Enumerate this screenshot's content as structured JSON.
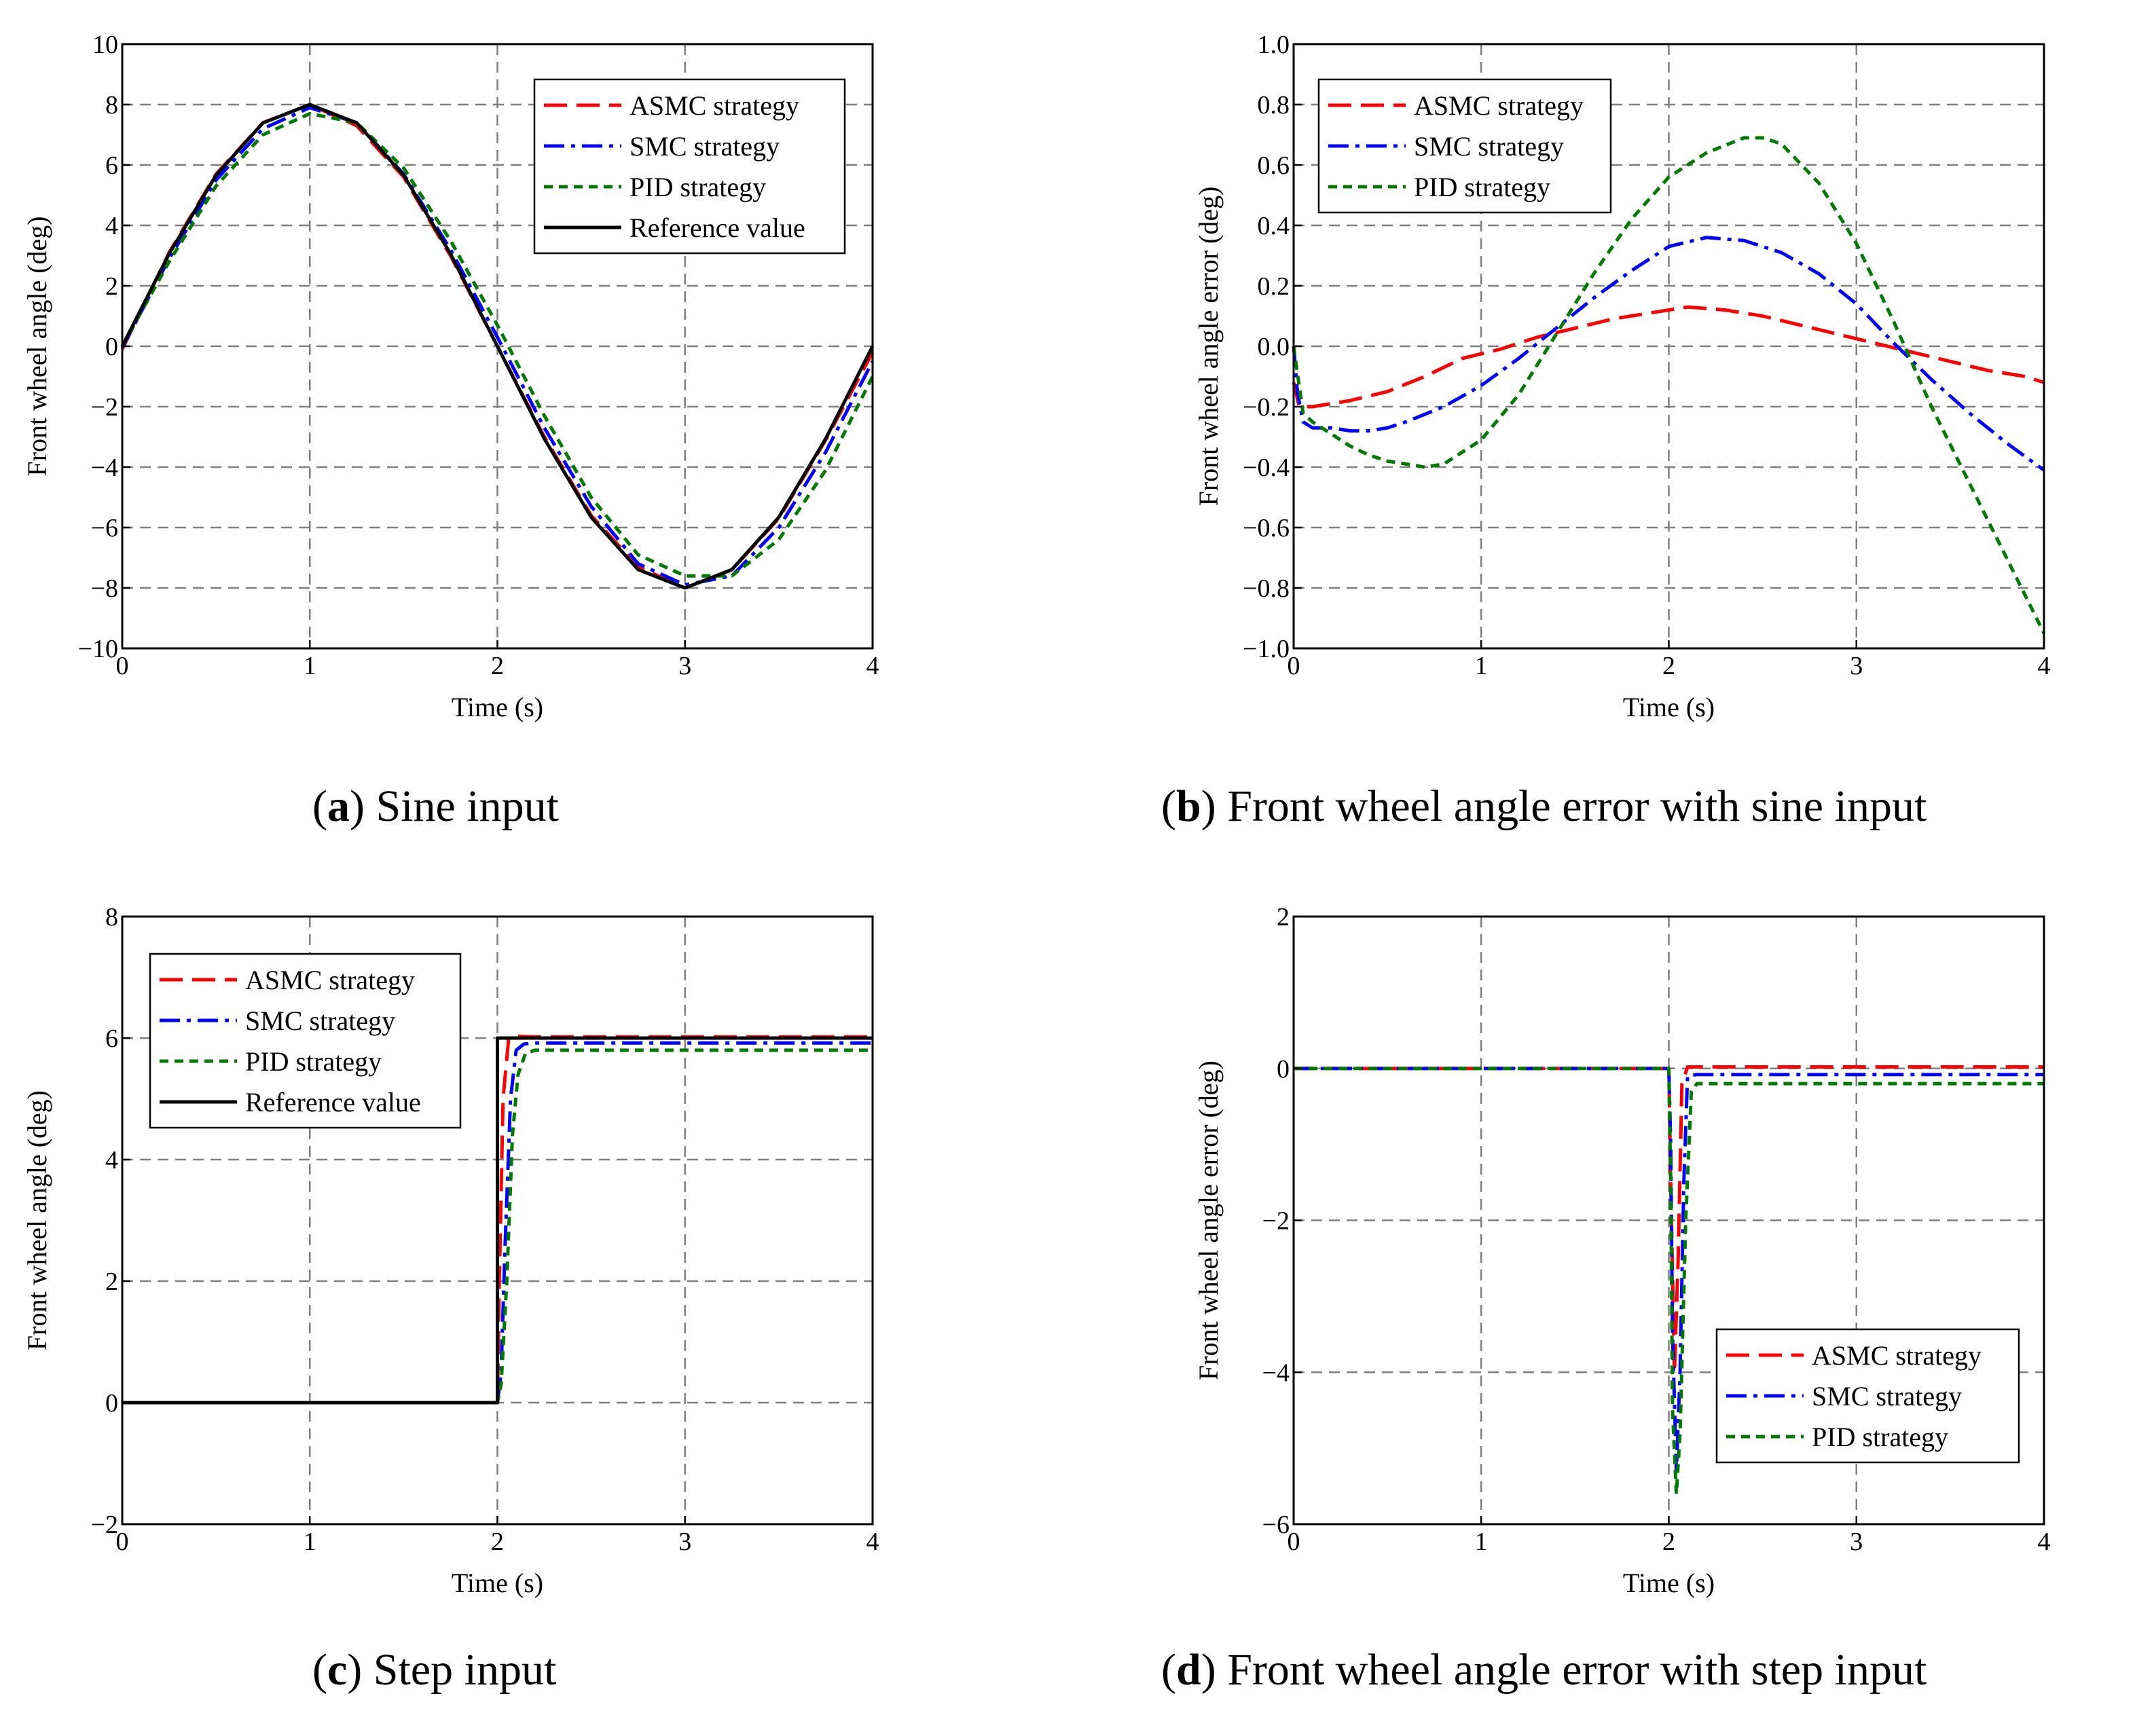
{
  "colors": {
    "asmc": "#ff0000",
    "smc": "#0000ff",
    "pid": "#007a00",
    "ref": "#000000",
    "grid": "#7f7f7f"
  },
  "chart_data": [
    {
      "id": "a",
      "type": "line",
      "caption_letter": "a",
      "caption_text": " Sine input",
      "xlabel": "Time (s)",
      "ylabel": "Front wheel angle (deg)",
      "xlim": [
        0,
        4
      ],
      "ylim": [
        -10,
        10
      ],
      "xticks": [
        0,
        1,
        2,
        3,
        4
      ],
      "xtick_labels": [
        "0",
        "1",
        "2",
        "3",
        "4"
      ],
      "yticks": [
        -10,
        -8,
        -6,
        -4,
        -2,
        0,
        2,
        4,
        6,
        8,
        10
      ],
      "ytick_labels": [
        "−10",
        "−8",
        "−6",
        "−4",
        "−2",
        "0",
        "2",
        "4",
        "6",
        "8",
        "10"
      ],
      "grid": true,
      "legend_position": "top-right",
      "series": [
        {
          "name": "ASMC strategy",
          "style": "asmc",
          "x": [
            0,
            0.25,
            0.5,
            0.75,
            1.0,
            1.25,
            1.5,
            1.75,
            2.0,
            2.25,
            2.5,
            2.75,
            3.0,
            3.25,
            3.5,
            3.75,
            4.0
          ],
          "y": [
            -0.1,
            3.1,
            5.7,
            7.4,
            8.0,
            7.3,
            5.6,
            3.0,
            0.0,
            -3.0,
            -5.6,
            -7.3,
            -8.0,
            -7.4,
            -5.7,
            -3.1,
            -0.2
          ]
        },
        {
          "name": "SMC strategy",
          "style": "smc",
          "x": [
            0,
            0.25,
            0.5,
            0.75,
            1.0,
            1.25,
            1.5,
            1.75,
            2.0,
            2.25,
            2.5,
            2.75,
            3.0,
            3.25,
            3.5,
            3.75,
            4.0
          ],
          "y": [
            -0.05,
            2.9,
            5.5,
            7.2,
            7.9,
            7.4,
            5.7,
            3.2,
            0.3,
            -2.7,
            -5.3,
            -7.2,
            -7.9,
            -7.6,
            -6.0,
            -3.5,
            -0.5
          ]
        },
        {
          "name": "PID strategy",
          "style": "pid",
          "x": [
            0,
            0.25,
            0.5,
            0.75,
            1.0,
            1.25,
            1.5,
            1.75,
            2.0,
            2.25,
            2.5,
            2.75,
            3.0,
            3.25,
            3.5,
            3.75,
            4.0
          ],
          "y": [
            0.0,
            2.8,
            5.3,
            7.0,
            7.7,
            7.4,
            5.9,
            3.5,
            0.7,
            -2.3,
            -5.0,
            -6.9,
            -7.6,
            -7.6,
            -6.4,
            -4.1,
            -1.0
          ]
        },
        {
          "name": "Reference value",
          "style": "ref",
          "x": [
            0,
            0.25,
            0.5,
            0.75,
            1.0,
            1.25,
            1.5,
            1.75,
            2.0,
            2.25,
            2.5,
            2.75,
            3.0,
            3.25,
            3.5,
            3.75,
            4.0
          ],
          "y": [
            0.0,
            3.06,
            5.66,
            7.39,
            8.0,
            7.39,
            5.66,
            3.06,
            0.0,
            -3.06,
            -5.66,
            -7.39,
            -8.0,
            -7.39,
            -5.66,
            -3.06,
            0.0
          ]
        }
      ]
    },
    {
      "id": "b",
      "type": "line",
      "caption_letter": "b",
      "caption_text": " Front wheel angle error with sine input",
      "xlabel": "Time (s)",
      "ylabel": "Front wheel angle error (deg)",
      "xlim": [
        0,
        4
      ],
      "ylim": [
        -1.0,
        1.0
      ],
      "xticks": [
        0,
        1,
        2,
        3,
        4
      ],
      "xtick_labels": [
        "0",
        "1",
        "2",
        "3",
        "4"
      ],
      "yticks": [
        -1.0,
        -0.8,
        -0.6,
        -0.4,
        -0.2,
        0.0,
        0.2,
        0.4,
        0.6,
        0.8,
        1.0
      ],
      "ytick_labels": [
        "−1.0",
        "−0.8",
        "−0.6",
        "−0.4",
        "−0.2",
        "0.0",
        "0.2",
        "0.4",
        "0.6",
        "0.8",
        "1.0"
      ],
      "grid": true,
      "legend_position": "top-left",
      "series": [
        {
          "name": "ASMC strategy",
          "style": "asmc",
          "x": [
            0,
            0.03,
            0.1,
            0.3,
            0.5,
            0.7,
            0.9,
            1.1,
            1.3,
            1.5,
            1.7,
            1.9,
            2.1,
            2.3,
            2.5,
            2.7,
            2.9,
            3.1,
            3.3,
            3.5,
            3.7,
            3.9,
            4.0
          ],
          "y": [
            -0.12,
            -0.2,
            -0.2,
            -0.18,
            -0.15,
            -0.1,
            -0.04,
            -0.01,
            0.03,
            0.06,
            0.09,
            0.11,
            0.13,
            0.12,
            0.1,
            0.07,
            0.04,
            0.01,
            -0.02,
            -0.05,
            -0.08,
            -0.1,
            -0.12
          ]
        },
        {
          "name": "SMC strategy",
          "style": "smc",
          "x": [
            0,
            0.02,
            0.05,
            0.1,
            0.2,
            0.3,
            0.4,
            0.5,
            0.6,
            0.8,
            1.0,
            1.2,
            1.4,
            1.6,
            1.8,
            2.0,
            2.2,
            2.4,
            2.6,
            2.8,
            3.0,
            3.2,
            3.4,
            3.6,
            3.8,
            4.0
          ],
          "y": [
            0.0,
            -0.15,
            -0.25,
            -0.27,
            -0.27,
            -0.28,
            -0.28,
            -0.27,
            -0.25,
            -0.2,
            -0.13,
            -0.04,
            0.06,
            0.16,
            0.25,
            0.33,
            0.36,
            0.35,
            0.31,
            0.24,
            0.14,
            0.01,
            -0.11,
            -0.22,
            -0.32,
            -0.41
          ]
        },
        {
          "name": "PID strategy",
          "style": "pid",
          "x": [
            0,
            0.05,
            0.1,
            0.2,
            0.3,
            0.4,
            0.5,
            0.6,
            0.7,
            0.8,
            1.0,
            1.2,
            1.4,
            1.6,
            1.8,
            2.0,
            2.2,
            2.4,
            2.5,
            2.6,
            2.8,
            3.0,
            3.2,
            3.4,
            3.6,
            3.8,
            4.0
          ],
          "y": [
            0.0,
            -0.22,
            -0.25,
            -0.29,
            -0.33,
            -0.36,
            -0.38,
            -0.39,
            -0.4,
            -0.39,
            -0.31,
            -0.16,
            0.04,
            0.24,
            0.42,
            0.56,
            0.64,
            0.69,
            0.69,
            0.67,
            0.54,
            0.34,
            0.08,
            -0.2,
            -0.45,
            -0.7,
            -0.95
          ]
        }
      ]
    },
    {
      "id": "c",
      "type": "line",
      "caption_letter": "c",
      "caption_text": " Step input",
      "xlabel": "Time (s)",
      "ylabel": "Front wheel angle (deg)",
      "xlim": [
        0,
        4
      ],
      "ylim": [
        -2,
        8
      ],
      "xticks": [
        0,
        1,
        2,
        3,
        4
      ],
      "xtick_labels": [
        "0",
        "1",
        "2",
        "3",
        "4"
      ],
      "yticks": [
        -2,
        0,
        2,
        4,
        6,
        8
      ],
      "ytick_labels": [
        "−2",
        "0",
        "2",
        "4",
        "6",
        "8"
      ],
      "grid": true,
      "legend_position": "top-left",
      "series": [
        {
          "name": "ASMC strategy",
          "style": "asmc",
          "x": [
            0,
            2.0,
            2.01,
            2.03,
            2.06,
            2.1,
            2.2,
            4.0
          ],
          "y": [
            0,
            0,
            2.0,
            5.0,
            6.0,
            6.03,
            6.02,
            6.02
          ]
        },
        {
          "name": "SMC strategy",
          "style": "smc",
          "x": [
            0,
            2.0,
            2.02,
            2.04,
            2.07,
            2.1,
            2.14,
            2.2,
            4.0
          ],
          "y": [
            0,
            0,
            0.5,
            2.5,
            5.0,
            5.8,
            5.9,
            5.92,
            5.92
          ]
        },
        {
          "name": "PID strategy",
          "style": "pid",
          "x": [
            0,
            2.0,
            2.02,
            2.05,
            2.08,
            2.11,
            2.15,
            2.2,
            4.0
          ],
          "y": [
            0,
            0,
            0.3,
            2.0,
            4.4,
            5.4,
            5.75,
            5.8,
            5.8
          ]
        },
        {
          "name": "Reference value",
          "style": "ref",
          "x": [
            0,
            2.0,
            2.0,
            4.0
          ],
          "y": [
            0,
            0,
            6,
            6
          ]
        }
      ]
    },
    {
      "id": "d",
      "type": "line",
      "caption_letter": "d",
      "caption_text": " Front wheel angle error with step input",
      "xlabel": "Time (s)",
      "ylabel": "Front wheel angle error (deg)",
      "xlim": [
        0,
        4
      ],
      "ylim": [
        -6,
        2
      ],
      "xticks": [
        0,
        1,
        2,
        3,
        4
      ],
      "xtick_labels": [
        "0",
        "1",
        "2",
        "3",
        "4"
      ],
      "yticks": [
        -6,
        -4,
        -2,
        0,
        2
      ],
      "ytick_labels": [
        "−6",
        "−4",
        "−2",
        "0",
        "2"
      ],
      "grid": true,
      "legend_position": "bottom-right",
      "series": [
        {
          "name": "ASMC strategy",
          "style": "asmc",
          "x": [
            0,
            2.0,
            2.01,
            2.03,
            2.05,
            2.07,
            2.1,
            4.0
          ],
          "y": [
            0,
            0,
            -1.5,
            -4.0,
            -2.5,
            -0.2,
            0.02,
            0.02
          ]
        },
        {
          "name": "SMC strategy",
          "style": "smc",
          "x": [
            0,
            2.0,
            2.01,
            2.02,
            2.04,
            2.06,
            2.08,
            2.1,
            2.15,
            4.0
          ],
          "y": [
            0,
            0,
            -1.0,
            -3.5,
            -5.3,
            -4.0,
            -1.5,
            -0.1,
            -0.08,
            -0.08
          ]
        },
        {
          "name": "PID strategy",
          "style": "pid",
          "x": [
            0,
            2.0,
            2.01,
            2.02,
            2.04,
            2.06,
            2.09,
            2.12,
            2.15,
            4.0
          ],
          "y": [
            0,
            0,
            -1.5,
            -4.5,
            -5.6,
            -4.8,
            -2.0,
            -0.3,
            -0.2,
            -0.2
          ]
        }
      ]
    }
  ]
}
